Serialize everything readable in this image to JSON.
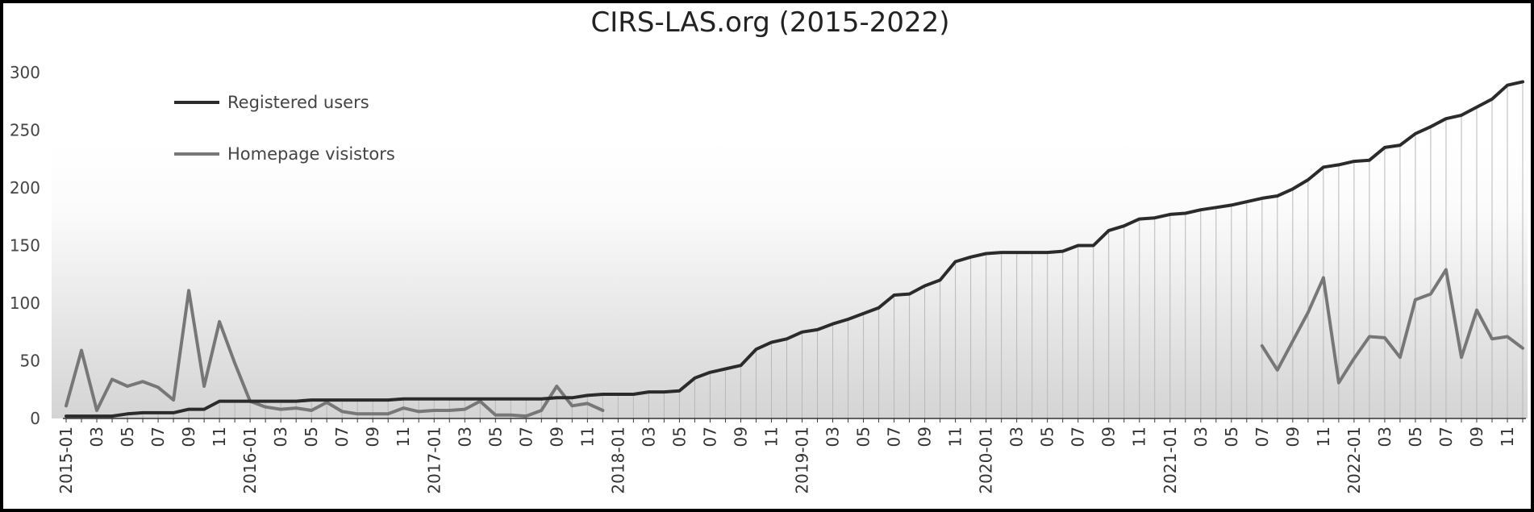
{
  "chart_data": {
    "type": "line",
    "title": "CIRS-LAS.org (2015-2022)",
    "xlabel": "",
    "ylabel": "",
    "ylim": [
      0,
      300
    ],
    "yticks": [
      "0",
      "50",
      "100",
      "150",
      "200",
      "250",
      "300"
    ],
    "grid": "vertical lines at each month below the Registered users line",
    "legend_position": "top-left",
    "start_month": "2015-01",
    "xtick_labels": [
      "2015-01",
      "03",
      "05",
      "07",
      "09",
      "11",
      "2016-01",
      "03",
      "05",
      "07",
      "09",
      "11",
      "2017-01",
      "03",
      "05",
      "07",
      "09",
      "11",
      "2018-01",
      "03",
      "05",
      "07",
      "09",
      "11",
      "2019-01",
      "03",
      "05",
      "07",
      "09",
      "11",
      "2020-01",
      "03",
      "05",
      "07",
      "09",
      "11",
      "2021-01",
      "03",
      "05",
      "07",
      "09",
      "11",
      "2022-01",
      "03",
      "05",
      "07",
      "09",
      "11"
    ],
    "series": [
      {
        "name": "Registered users",
        "color": "#2b2b2b",
        "values": [
          2,
          2,
          2,
          2,
          4,
          5,
          5,
          5,
          8,
          8,
          15,
          15,
          15,
          15,
          15,
          15,
          16,
          16,
          16,
          16,
          16,
          16,
          17,
          17,
          17,
          17,
          17,
          17,
          17,
          17,
          17,
          17,
          18,
          18,
          20,
          21,
          21,
          21,
          23,
          23,
          24,
          35,
          40,
          43,
          46,
          60,
          66,
          69,
          75,
          77,
          82,
          86,
          91,
          96,
          107,
          108,
          115,
          120,
          136,
          140,
          143,
          144,
          144,
          144,
          144,
          145,
          150,
          150,
          163,
          167,
          173,
          174,
          177,
          178,
          181,
          183,
          185,
          188,
          191,
          193,
          199,
          207,
          218,
          220,
          223,
          224,
          235,
          237,
          247,
          253,
          260,
          263,
          270,
          277,
          289,
          292
        ]
      },
      {
        "name": "Homepage visistors",
        "color": "#777777",
        "values": [
          11,
          59,
          7,
          34,
          28,
          32,
          27,
          16,
          111,
          28,
          84,
          48,
          15,
          10,
          8,
          9,
          7,
          14,
          6,
          4,
          4,
          4,
          9,
          6,
          7,
          7,
          8,
          15,
          3,
          3,
          2,
          7,
          28,
          11,
          13,
          7,
          null,
          null,
          null,
          null,
          null,
          null,
          null,
          null,
          null,
          null,
          null,
          null,
          null,
          null,
          null,
          null,
          null,
          null,
          null,
          null,
          null,
          null,
          null,
          null,
          null,
          null,
          null,
          null,
          null,
          null,
          null,
          null,
          null,
          null,
          null,
          null,
          null,
          null,
          null,
          null,
          null,
          null,
          63,
          42,
          67,
          92,
          122,
          31,
          52,
          71,
          70,
          53,
          103,
          108,
          129,
          53,
          94,
          69,
          71,
          61
        ]
      }
    ]
  }
}
